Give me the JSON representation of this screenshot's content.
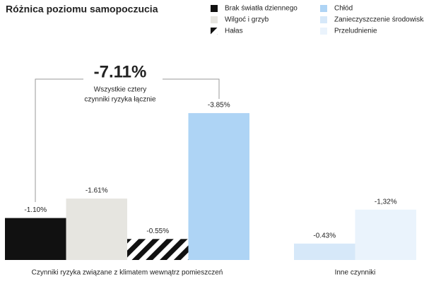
{
  "chart_data": {
    "type": "grouped-bar",
    "title": "Różnica poziomu samopoczucia",
    "annotation": {
      "label": "-7.11%",
      "text": [
        "Wszystkie cztery",
        "czynniki ryzyka łącznie"
      ]
    },
    "ylim": [
      0,
      -4
    ],
    "groups": [
      {
        "name": "Czynniki ryzyka związane z klimatem wewnątrz pomieszczeń",
        "series": [
          {
            "name": "Brak światła dziennego",
            "color": "#111111",
            "value": -1.1,
            "value_label": "-1.10%"
          },
          {
            "name": "Wilgoć i grzyb",
            "color": "#e6e5e0",
            "value": -1.61,
            "value_label": "-1.61%"
          },
          {
            "name": "Hałas",
            "color": "#111111",
            "pattern": "hatch",
            "value": -0.55,
            "value_label": "-0.55%"
          },
          {
            "name": "Chłód",
            "color": "#aed4f5",
            "value": -3.85,
            "value_label": "-3.85%"
          }
        ]
      },
      {
        "name": "Inne czynniki",
        "series": [
          {
            "name": "Zanieczyszczenie środowiska",
            "color": "#d6e8f9",
            "value": -0.43,
            "value_label": "-0.43%"
          },
          {
            "name": "Przeludnienie",
            "color": "#eaf3fc",
            "value": -1.32,
            "value_label": "-1,32%"
          }
        ]
      }
    ]
  }
}
